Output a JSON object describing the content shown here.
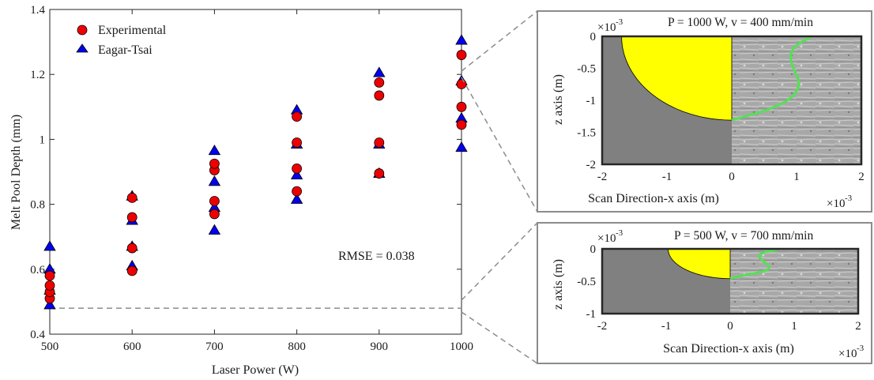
{
  "main_chart": {
    "type": "scatter",
    "xlabel": "Laser Power (W)",
    "ylabel": "Melt Pool Depth (mm)",
    "xlim": [
      500,
      1000
    ],
    "ylim": [
      0.4,
      1.4
    ],
    "xticks": [
      "500",
      "600",
      "700",
      "800",
      "900",
      "1000"
    ],
    "yticks": [
      "0.4",
      "0.6",
      "0.8",
      "1",
      "1.2",
      "1.4"
    ],
    "annotation": "RMSE = 0.038",
    "reference_line_y": 0.48,
    "legend_position": "top-left",
    "series": [
      {
        "name": "Experimental",
        "marker": "circle",
        "color": "#ee0000",
        "points": [
          [
            500,
            0.51
          ],
          [
            500,
            0.53
          ],
          [
            500,
            0.55
          ],
          [
            500,
            0.58
          ],
          [
            600,
            0.595
          ],
          [
            600,
            0.665
          ],
          [
            600,
            0.76
          ],
          [
            600,
            0.82
          ],
          [
            700,
            0.77
          ],
          [
            700,
            0.81
          ],
          [
            700,
            0.905
          ],
          [
            700,
            0.925
          ],
          [
            800,
            0.84
          ],
          [
            800,
            0.91
          ],
          [
            800,
            0.99
          ],
          [
            800,
            1.07
          ],
          [
            900,
            0.895
          ],
          [
            900,
            0.99
          ],
          [
            900,
            1.135
          ],
          [
            900,
            1.175
          ],
          [
            1000,
            1.045
          ],
          [
            1000,
            1.1
          ],
          [
            1000,
            1.17
          ],
          [
            1000,
            1.26
          ]
        ]
      },
      {
        "name": "Eagar-Tsai",
        "marker": "triangle",
        "color": "#0000ee",
        "points": [
          [
            500,
            0.49
          ],
          [
            500,
            0.535
          ],
          [
            500,
            0.6
          ],
          [
            500,
            0.67
          ],
          [
            600,
            0.61
          ],
          [
            600,
            0.67
          ],
          [
            600,
            0.75
          ],
          [
            600,
            0.825
          ],
          [
            700,
            0.72
          ],
          [
            700,
            0.79
          ],
          [
            700,
            0.87
          ],
          [
            700,
            0.965
          ],
          [
            800,
            0.815
          ],
          [
            800,
            0.89
          ],
          [
            800,
            0.985
          ],
          [
            800,
            1.09
          ],
          [
            900,
            0.895
          ],
          [
            900,
            0.985
          ],
          [
            900,
            1.205
          ],
          [
            1000,
            0.975
          ],
          [
            1000,
            1.065
          ],
          [
            1000,
            1.18
          ],
          [
            1000,
            1.305
          ]
        ]
      }
    ]
  },
  "insets": [
    {
      "title": "P = 1000 W, v = 400 mm/min",
      "xlabel": "Scan Direction-x axis (m)",
      "ylabel": "z axis (m)",
      "x_multiplier": "×10",
      "y_multiplier": "×10",
      "exponent": "-3",
      "xlim": [
        -2,
        2
      ],
      "ylim": [
        -2,
        0
      ],
      "xticks": [
        "-2",
        "-1",
        "0",
        "1",
        "2"
      ],
      "yticks": [
        "0",
        "-0.5",
        "-1",
        "-1.5",
        "-2"
      ],
      "melt_pool": {
        "half_width": 1.7,
        "depth": 1.31
      },
      "fill_color": "#ffff00",
      "boundary_color": "#55e055"
    },
    {
      "title": "P = 500 W, v = 700 mm/min",
      "xlabel": "Scan Direction-x axis (m)",
      "ylabel": "z axis (m)",
      "x_multiplier": "×10",
      "y_multiplier": "×10",
      "exponent": "-3",
      "xlim": [
        -2,
        2
      ],
      "ylim": [
        -1,
        0
      ],
      "xticks": [
        "-2",
        "-1",
        "0",
        "1",
        "2"
      ],
      "yticks": [
        "0",
        "-0.5",
        "-1"
      ],
      "melt_pool": {
        "half_width": 0.97,
        "depth": 0.46
      },
      "fill_color": "#ffff00",
      "boundary_color": "#55e055"
    }
  ]
}
